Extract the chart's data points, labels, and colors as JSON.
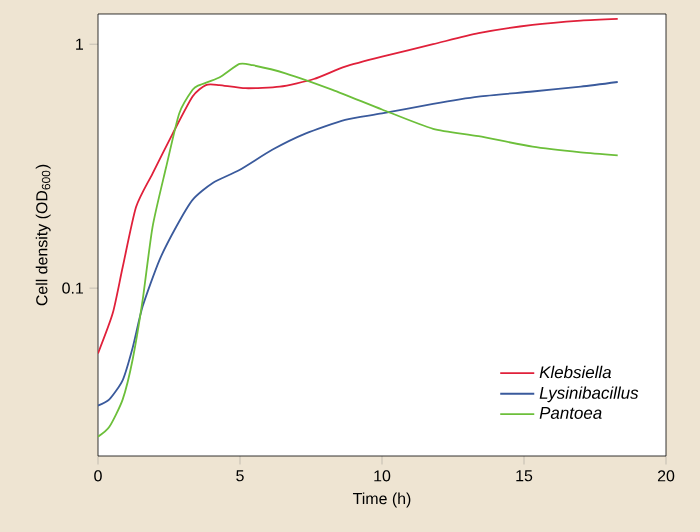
{
  "chart_data": {
    "type": "line",
    "xlabel": "Time (h)",
    "ylabel": "Cell density (OD$_{600}$)",
    "log": "y",
    "xlim": [
      0,
      20
    ],
    "xticks": [
      0,
      5,
      10,
      15,
      20
    ],
    "ylim": [
      0.0205,
      1.33
    ],
    "yticks": [
      0.1,
      1
    ],
    "grid": false,
    "legend": "bottom right",
    "marker": "none",
    "line_style": "solid",
    "series": [
      {
        "name": "Klebsiella",
        "color": "#e0203a",
        "x": [
          0,
          0.52,
          0.87,
          1.34,
          1.92,
          2.63,
          3.33,
          3.8,
          4.27,
          5.2,
          6.4,
          7.6,
          8.7,
          10.0,
          11.8,
          13.4,
          15.3,
          17,
          18.3
        ],
        "values": [
          0.054,
          0.079,
          0.122,
          0.215,
          0.295,
          0.43,
          0.61,
          0.68,
          0.68,
          0.66,
          0.67,
          0.72,
          0.81,
          0.89,
          1.0,
          1.11,
          1.2,
          1.25,
          1.27
        ]
      },
      {
        "name": "Lysinibacillus",
        "color": "#3a5a9c",
        "x": [
          0,
          0.4,
          0.87,
          1.22,
          1.57,
          2.16,
          2.75,
          3.33,
          4.04,
          4.98,
          6.15,
          7.3,
          8.7,
          10,
          11.8,
          13.4,
          15.3,
          17,
          18.3
        ],
        "values": [
          0.033,
          0.035,
          0.042,
          0.057,
          0.084,
          0.13,
          0.178,
          0.23,
          0.27,
          0.305,
          0.37,
          0.43,
          0.49,
          0.52,
          0.57,
          0.61,
          0.64,
          0.67,
          0.7
        ]
      },
      {
        "name": "Pantoea",
        "color": "#6cbf3a",
        "x": [
          0,
          0.4,
          0.87,
          1.22,
          1.57,
          1.92,
          2.39,
          2.86,
          3.33,
          3.57,
          4.27,
          4.98,
          5.45,
          6.6,
          8.26,
          10,
          11.8,
          13.4,
          15.3,
          17,
          18.3
        ],
        "values": [
          0.0246,
          0.027,
          0.035,
          0.051,
          0.089,
          0.178,
          0.31,
          0.52,
          0.65,
          0.68,
          0.73,
          0.83,
          0.82,
          0.76,
          0.65,
          0.54,
          0.45,
          0.42,
          0.38,
          0.36,
          0.35
        ]
      }
    ]
  }
}
